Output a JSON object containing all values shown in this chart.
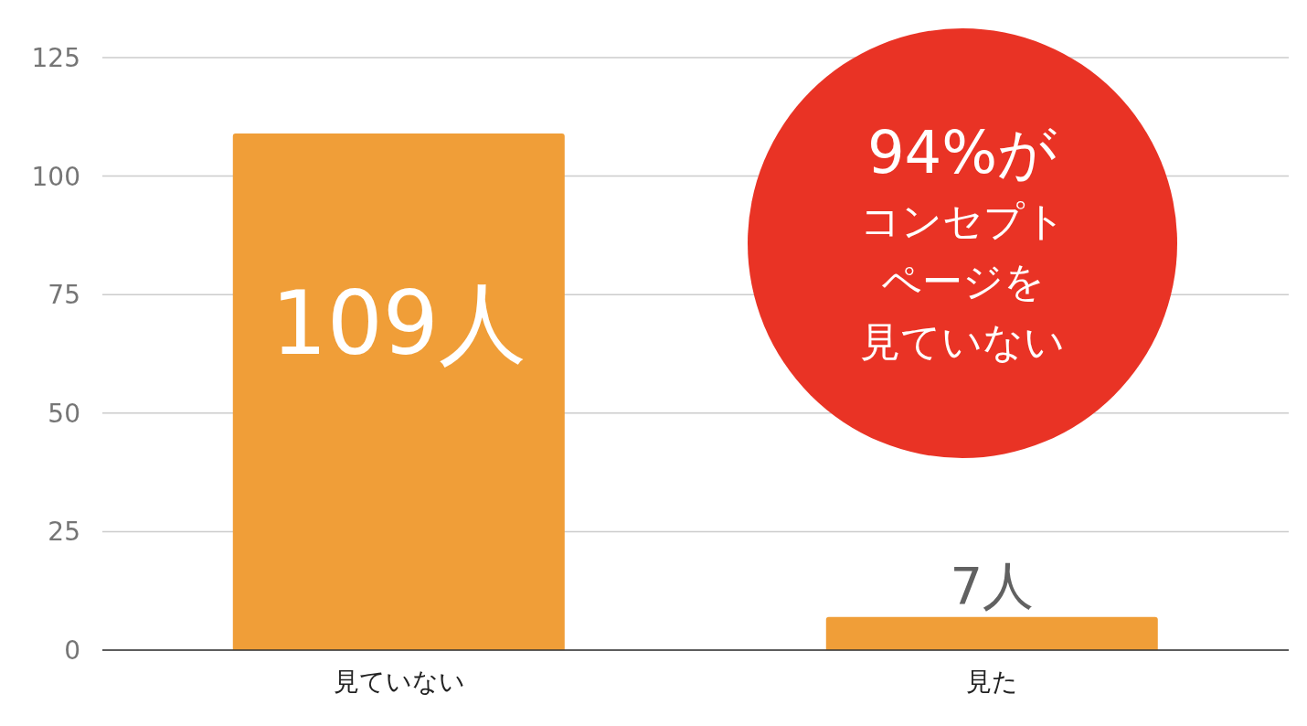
{
  "chart_data": {
    "type": "bar",
    "categories": [
      "見ていない",
      "見た"
    ],
    "values": [
      109,
      7
    ],
    "value_labels": [
      "109人",
      "7人"
    ],
    "color": "#f09e38",
    "ylim": [
      0,
      125
    ],
    "yticks": [
      0,
      25,
      50,
      75,
      100,
      125
    ],
    "grid": "y",
    "annotations": [
      "94%が",
      "コンセプト",
      "ページを",
      "見ていない"
    ]
  }
}
